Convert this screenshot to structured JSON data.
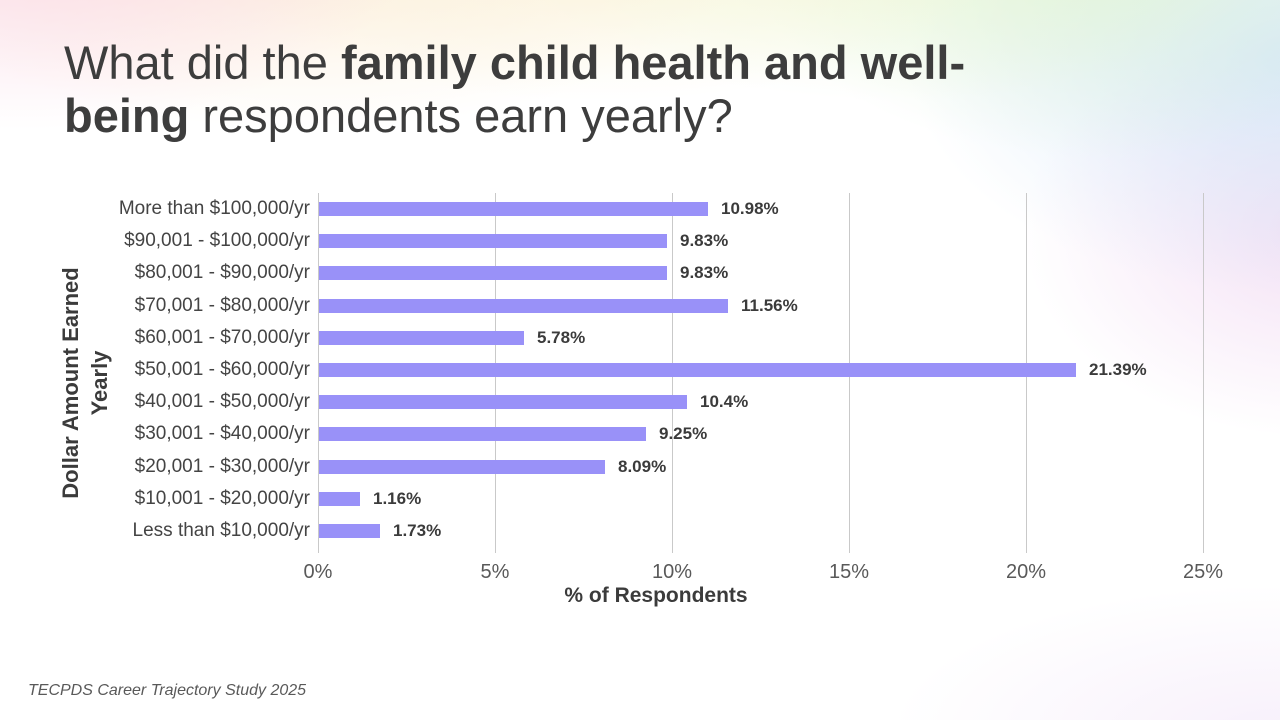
{
  "slide": {
    "title": {
      "line1_regular": "What did the ",
      "line1_bold": "family child health and well-",
      "line2_bold": "being",
      "line2_regular": " respondents earn yearly?"
    },
    "footer": "TECPDS Career Trajectory Study 2025"
  },
  "chart_data": {
    "type": "bar",
    "orientation": "horizontal",
    "title": "",
    "xlabel": "% of Respondents",
    "ylabel": "Dollar Amount Earned Yearly",
    "ylabel_lines": [
      "Dollar Amount Earned",
      "Yearly"
    ],
    "categories": [
      "More than $100,000/yr",
      "$90,001 - $100,000/yr",
      "$80,001 - $90,000/yr",
      "$70,001 - $80,000/yr",
      "$60,001 - $70,000/yr",
      "$50,001 - $60,000/yr",
      "$40,001 - $50,000/yr",
      "$30,001 - $40,000/yr",
      "$20,001 - $30,000/yr",
      "$10,001 - $20,000/yr",
      "Less than $10,000/yr"
    ],
    "values": [
      10.98,
      9.83,
      9.83,
      11.56,
      5.78,
      21.39,
      10.4,
      9.25,
      8.09,
      1.16,
      1.73
    ],
    "value_labels": [
      "10.98%",
      "9.83%",
      "9.83%",
      "11.56%",
      "5.78%",
      "21.39%",
      "10.4%",
      "9.25%",
      "8.09%",
      "1.16%",
      "1.73%"
    ],
    "xlim": [
      0,
      25
    ],
    "x_ticks": [
      0,
      5,
      10,
      15,
      20,
      25
    ],
    "x_tick_labels": [
      "0%",
      "5%",
      "10%",
      "15%",
      "20%",
      "25%"
    ],
    "grid": true,
    "legend": false,
    "bar_color": "#9991F8",
    "gridline_color": "#c9c9c9",
    "label_color": "#3b3b3b"
  }
}
